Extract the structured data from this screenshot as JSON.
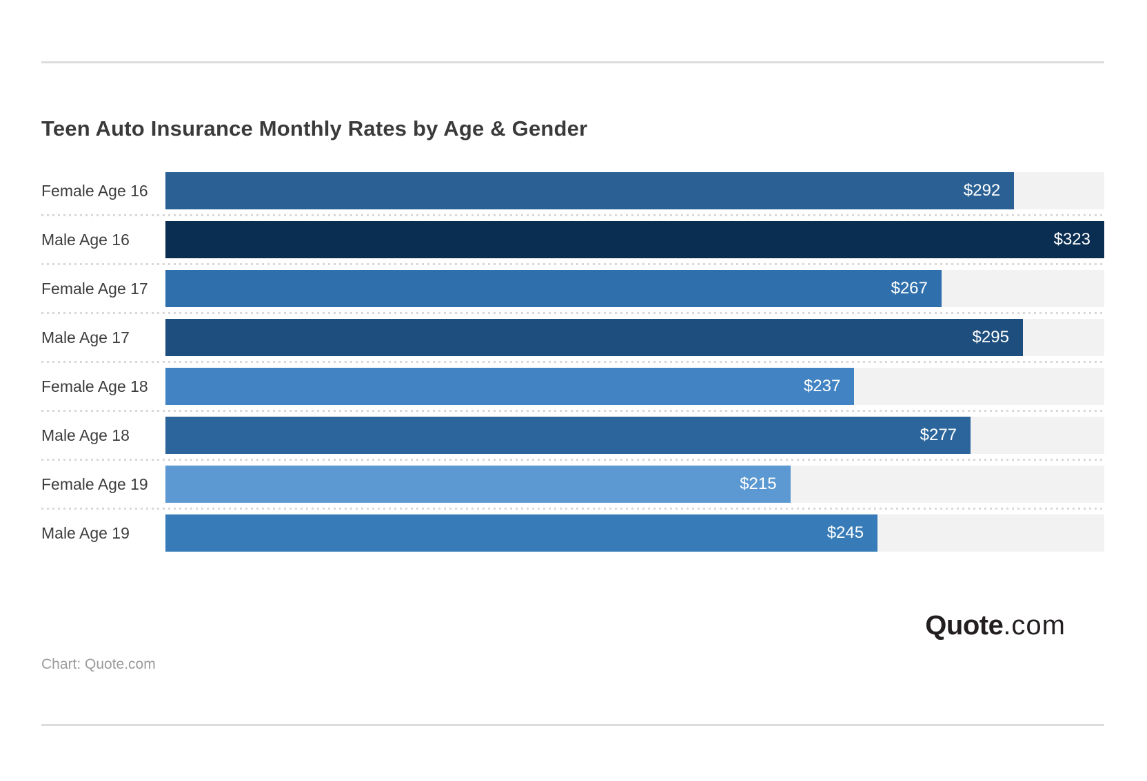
{
  "title": "Teen Auto Insurance Monthly Rates by Age & Gender",
  "source_note": "Chart: Quote.com",
  "logo": {
    "bold": "Quote",
    "regular": ".com"
  },
  "colors": {
    "track": "#f2f2f2",
    "separator": "#d8d8d8",
    "rule": "#dcdcdc",
    "title_text": "#3a3a3a",
    "category_text": "#3d3d3d",
    "value_text": "#ffffff"
  },
  "chart_data": {
    "type": "bar",
    "orientation": "horizontal",
    "title": "Teen Auto Insurance Monthly Rates by Age & Gender",
    "xlabel": "",
    "ylabel": "",
    "xlim": [
      0,
      323
    ],
    "grid": false,
    "legend": false,
    "categories": [
      "Female Age 16",
      "Male Age 16",
      "Female Age 17",
      "Male Age 17",
      "Female Age 18",
      "Male Age 18",
      "Female Age 19",
      "Male Age 19"
    ],
    "values": [
      292,
      323,
      267,
      295,
      237,
      277,
      215,
      245
    ],
    "value_labels": [
      "$292",
      "$323",
      "$267",
      "$295",
      "$237",
      "$277",
      "$215",
      "$245"
    ],
    "bar_colors": [
      "#2a6094",
      "#0a2e52",
      "#2f6fab",
      "#1e4e7d",
      "#4283c3",
      "#2b659b",
      "#5c99d2",
      "#377cb8"
    ]
  }
}
